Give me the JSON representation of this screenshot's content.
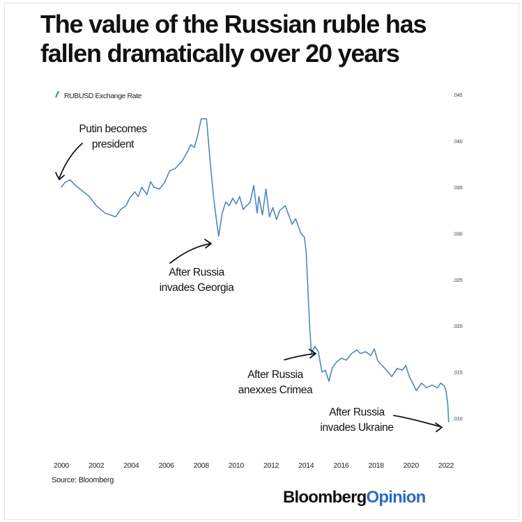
{
  "title_line1": "The value of the Russian ruble has",
  "title_line2": "fallen dramatically over 20 years",
  "source": "Source: Bloomberg",
  "brand": {
    "bold": "Bloomberg",
    "accent": "Opinion"
  },
  "colors": {
    "line": "#4f86bf",
    "accent": "#2a6cc4",
    "text": "#111111"
  },
  "chart_data": {
    "type": "line",
    "legend": "RUBUSD Exchange Rate",
    "legend_position": "top-left",
    "x_ticks": [
      "2000",
      "2002",
      "2004",
      "2006",
      "2008",
      "2010",
      "2012",
      "2014",
      "2016",
      "2018",
      "2020",
      "2022"
    ],
    "y_ticks": [
      ".010",
      ".015",
      ".020",
      ".025",
      ".030",
      ".035",
      ".040",
      ".045"
    ],
    "y_axis_side": "right",
    "xlim": [
      2000,
      2022
    ],
    "ylim": [
      0.008,
      0.046
    ],
    "grid": false,
    "series": [
      {
        "name": "RUBUSD Exchange Rate",
        "x": [
          2000.0,
          2000.2,
          2000.5,
          2000.8,
          2001.2,
          2001.6,
          2002.0,
          2002.5,
          2002.8,
          2003.1,
          2003.4,
          2003.7,
          2003.9,
          2004.2,
          2004.4,
          2004.6,
          2004.9,
          2005.1,
          2005.3,
          2005.6,
          2005.9,
          2006.2,
          2006.5,
          2006.9,
          2007.2,
          2007.4,
          2007.6,
          2007.8,
          2008.0,
          2008.3,
          2008.5,
          2008.7,
          2008.9,
          2009.0,
          2009.2,
          2009.4,
          2009.6,
          2009.8,
          2010.0,
          2010.2,
          2010.4,
          2010.6,
          2010.8,
          2011.0,
          2011.2,
          2011.3,
          2011.5,
          2011.7,
          2011.9,
          2012.1,
          2012.3,
          2012.5,
          2012.8,
          2013.0,
          2013.2,
          2013.4,
          2013.7,
          2013.9,
          2014.0,
          2014.1,
          2014.2,
          2014.3,
          2014.5,
          2014.7,
          2014.9,
          2015.1,
          2015.3,
          2015.5,
          2015.7,
          2016.0,
          2016.3,
          2016.6,
          2016.9,
          2017.1,
          2017.4,
          2017.7,
          2017.9,
          2018.1,
          2018.3,
          2018.6,
          2018.9,
          2019.2,
          2019.5,
          2019.7,
          2019.9,
          2020.1,
          2020.3,
          2020.6,
          2020.9,
          2021.2,
          2021.5,
          2021.7,
          2021.9,
          2022.0,
          2022.1,
          2022.15
        ],
        "y": [
          0.035,
          0.0355,
          0.0358,
          0.0352,
          0.0346,
          0.034,
          0.033,
          0.0322,
          0.032,
          0.0318,
          0.0326,
          0.033,
          0.0338,
          0.0345,
          0.034,
          0.035,
          0.0342,
          0.0356,
          0.035,
          0.0348,
          0.0355,
          0.0368,
          0.037,
          0.0378,
          0.0388,
          0.0396,
          0.0393,
          0.0406,
          0.0424,
          0.0424,
          0.038,
          0.034,
          0.031,
          0.0297,
          0.0322,
          0.0334,
          0.033,
          0.0338,
          0.0332,
          0.034,
          0.0326,
          0.033,
          0.0334,
          0.0352,
          0.0322,
          0.034,
          0.032,
          0.0348,
          0.0318,
          0.0328,
          0.0315,
          0.0325,
          0.033,
          0.032,
          0.031,
          0.0316,
          0.03,
          0.0296,
          0.028,
          0.024,
          0.02,
          0.017,
          0.0178,
          0.0172,
          0.015,
          0.0152,
          0.014,
          0.0155,
          0.016,
          0.0165,
          0.0163,
          0.017,
          0.0174,
          0.017,
          0.0172,
          0.0168,
          0.0175,
          0.0162,
          0.0158,
          0.0152,
          0.0145,
          0.0154,
          0.0152,
          0.0157,
          0.0145,
          0.0138,
          0.013,
          0.0138,
          0.0133,
          0.0136,
          0.0133,
          0.0138,
          0.0135,
          0.013,
          0.0115,
          0.0096
        ]
      }
    ],
    "annotations": [
      {
        "lines": [
          "Putin becomes",
          "president"
        ],
        "x": 2000.0,
        "y": 0.0355
      },
      {
        "lines": [
          "After Russia",
          "invades Georgia"
        ],
        "x": 2009.0,
        "y": 0.0297
      },
      {
        "lines": [
          "After Russia",
          "anexxes Crimea"
        ],
        "x": 2014.1,
        "y": 0.017
      },
      {
        "lines": [
          "After Russia",
          "invades Ukraine"
        ],
        "x": 2022.15,
        "y": 0.0096
      }
    ]
  }
}
